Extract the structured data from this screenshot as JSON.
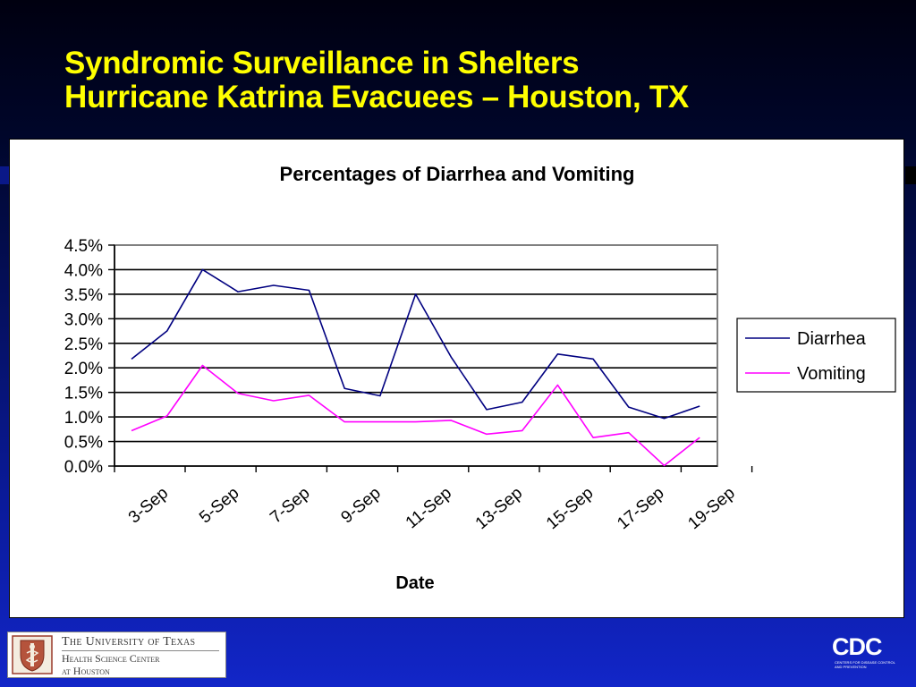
{
  "slide": {
    "title_line1": "Syndromic Surveillance in Shelters",
    "title_line2": "Hurricane Katrina Evacuees – Houston, TX"
  },
  "footer": {
    "institution_line1": "The University of Texas",
    "institution_line2": "Health Science Center",
    "institution_line3": "at Houston",
    "cdc_logo_text": "CDC",
    "cdc_tagline": "CENTERS FOR DISEASE CONTROL AND PREVENTION"
  },
  "colors": {
    "title": "#ffff00",
    "diarrhea": "#000080",
    "vomiting": "#ff00ff"
  },
  "chart_data": {
    "type": "line",
    "title": "Percentages of Diarrhea and Vomiting",
    "xlabel": "Date",
    "ylabel": "",
    "x": [
      "3-Sep",
      "4-Sep",
      "5-Sep",
      "6-Sep",
      "7-Sep",
      "8-Sep",
      "9-Sep",
      "10-Sep",
      "11-Sep",
      "12-Sep",
      "13-Sep",
      "14-Sep",
      "15-Sep",
      "16-Sep",
      "17-Sep",
      "18-Sep",
      "19-Sep"
    ],
    "x_tick_labels": [
      "3-Sep",
      "5-Sep",
      "7-Sep",
      "9-Sep",
      "11-Sep",
      "13-Sep",
      "15-Sep",
      "17-Sep",
      "19-Sep"
    ],
    "ylim": [
      0,
      0.045
    ],
    "y_ticks": [
      0,
      0.005,
      0.01,
      0.015,
      0.02,
      0.025,
      0.03,
      0.035,
      0.04,
      0.045
    ],
    "y_tick_labels": [
      "0.0%",
      "0.5%",
      "1.0%",
      "1.5%",
      "2.0%",
      "2.5%",
      "3.0%",
      "3.5%",
      "4.0%",
      "4.5%"
    ],
    "grid": true,
    "legend": "right",
    "series": [
      {
        "name": "Diarrhea",
        "color": "#000080",
        "values": [
          0.0218,
          0.0275,
          0.04,
          0.0355,
          0.0368,
          0.0358,
          0.0158,
          0.0143,
          0.035,
          0.0222,
          0.0115,
          0.013,
          0.0228,
          0.0218,
          0.012,
          0.0097,
          0.0122
        ]
      },
      {
        "name": "Vomiting",
        "color": "#ff00ff",
        "values": [
          0.0072,
          0.0102,
          0.0205,
          0.0148,
          0.0133,
          0.0144,
          0.009,
          0.009,
          0.009,
          0.0093,
          0.0065,
          0.0072,
          0.0165,
          0.0058,
          0.0068,
          0.0001,
          0.0058
        ]
      }
    ]
  }
}
